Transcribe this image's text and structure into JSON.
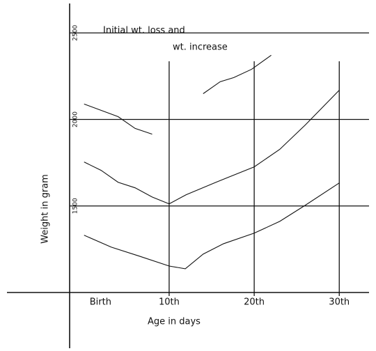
{
  "chart_data": {
    "type": "line",
    "title": "Initial wt. loss and",
    "annotation": "wt. increase",
    "xlabel": "Age in days",
    "ylabel": "Weight in gram",
    "xlim": [
      -1.7,
      33.5
    ],
    "xticks": [
      {
        "value": 0,
        "label": "Birth"
      },
      {
        "value": 10,
        "label": "10th"
      },
      {
        "value": 20,
        "label": "20th"
      },
      {
        "value": 30,
        "label": "30th"
      }
    ],
    "ylim": [
      1000,
      2650
    ],
    "yticks": [
      1500,
      2000,
      2500
    ],
    "grid": true,
    "series": [
      {
        "color": "#111111",
        "x": [
          0,
          4,
          6,
          8,
          11.3,
          14,
          16,
          17.6,
          19.7,
          22
        ],
        "values": [
          2089,
          2016,
          1948,
          1915,
          null,
          2149,
          2218,
          2242,
          2290,
          2371
        ]
      },
      {
        "color": "#111111",
        "x": [
          0,
          2,
          4,
          6,
          8,
          10,
          12,
          15.5,
          20,
          23,
          26,
          30
        ],
        "values": [
          1754,
          1706,
          1637,
          1605,
          1552,
          1512,
          1565,
          1637,
          1726,
          1827,
          1968,
          2169
        ]
      },
      {
        "color": "#111111",
        "x": [
          0,
          3.2,
          6.5,
          10,
          11.9,
          14,
          16.4,
          20,
          23,
          26,
          30
        ],
        "values": [
          1331,
          1262,
          1210,
          1153,
          1137,
          1222,
          1282,
          1343,
          1411,
          1504,
          1633
        ]
      }
    ]
  }
}
